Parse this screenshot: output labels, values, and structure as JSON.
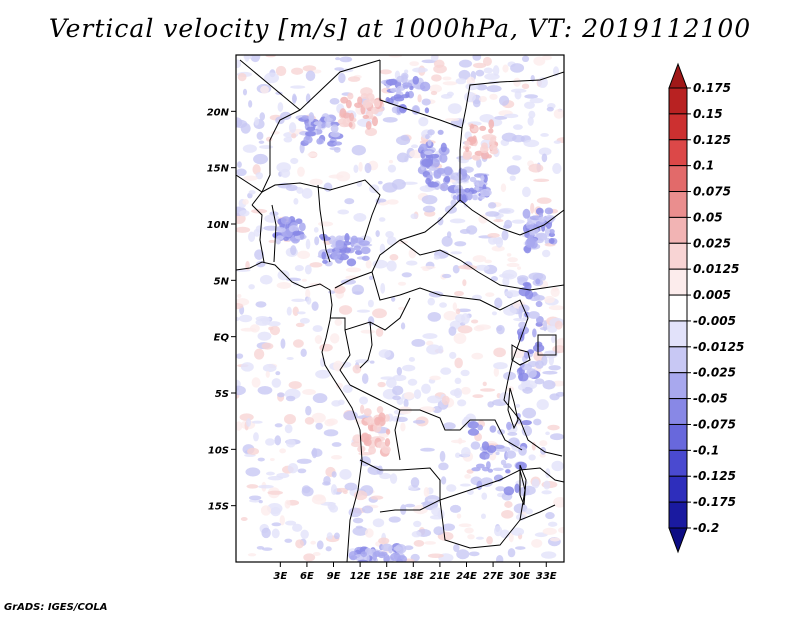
{
  "title": "Vertical velocity [m/s] at 1000hPa, VT: 2019112100",
  "credit": "GrADS: IGES/COLA",
  "map": {
    "lon_range": [
      -2,
      35
    ],
    "lat_range": [
      -20,
      25
    ],
    "lat_ticks": [
      {
        "value": 20,
        "label": "20N"
      },
      {
        "value": 15,
        "label": "15N"
      },
      {
        "value": 10,
        "label": "10N"
      },
      {
        "value": 5,
        "label": "5N"
      },
      {
        "value": 0,
        "label": "EQ"
      },
      {
        "value": -5,
        "label": "5S"
      },
      {
        "value": -10,
        "label": "10S"
      },
      {
        "value": -15,
        "label": "15S"
      }
    ],
    "lon_ticks": [
      {
        "value": 3,
        "label": "3E"
      },
      {
        "value": 6,
        "label": "6E"
      },
      {
        "value": 9,
        "label": "9E"
      },
      {
        "value": 12,
        "label": "12E"
      },
      {
        "value": 15,
        "label": "15E"
      },
      {
        "value": 18,
        "label": "18E"
      },
      {
        "value": 21,
        "label": "21E"
      },
      {
        "value": 24,
        "label": "24E"
      },
      {
        "value": 27,
        "label": "27E"
      },
      {
        "value": 30,
        "label": "30E"
      },
      {
        "value": 33,
        "label": "33E"
      }
    ]
  },
  "colorbar": {
    "levels": [
      "0.175",
      "0.15",
      "0.125",
      "0.1",
      "0.075",
      "0.05",
      "0.025",
      "0.0125",
      "0.005",
      "-0.005",
      "-0.0125",
      "-0.025",
      "-0.05",
      "-0.075",
      "-0.1",
      "-0.125",
      "-0.175",
      "-0.2"
    ],
    "colors": [
      "#a01818",
      "#b82222",
      "#cc3030",
      "#dc4848",
      "#e26a6a",
      "#ea8e8e",
      "#f2b4b4",
      "#f8d4d4",
      "#fcecec",
      "#ffffff",
      "#e2e2fa",
      "#c8c8f4",
      "#a8a8ee",
      "#8888e6",
      "#6868dc",
      "#4a4ad0",
      "#2e2ebc",
      "#1a1aa0",
      "#0c0c84"
    ]
  }
}
